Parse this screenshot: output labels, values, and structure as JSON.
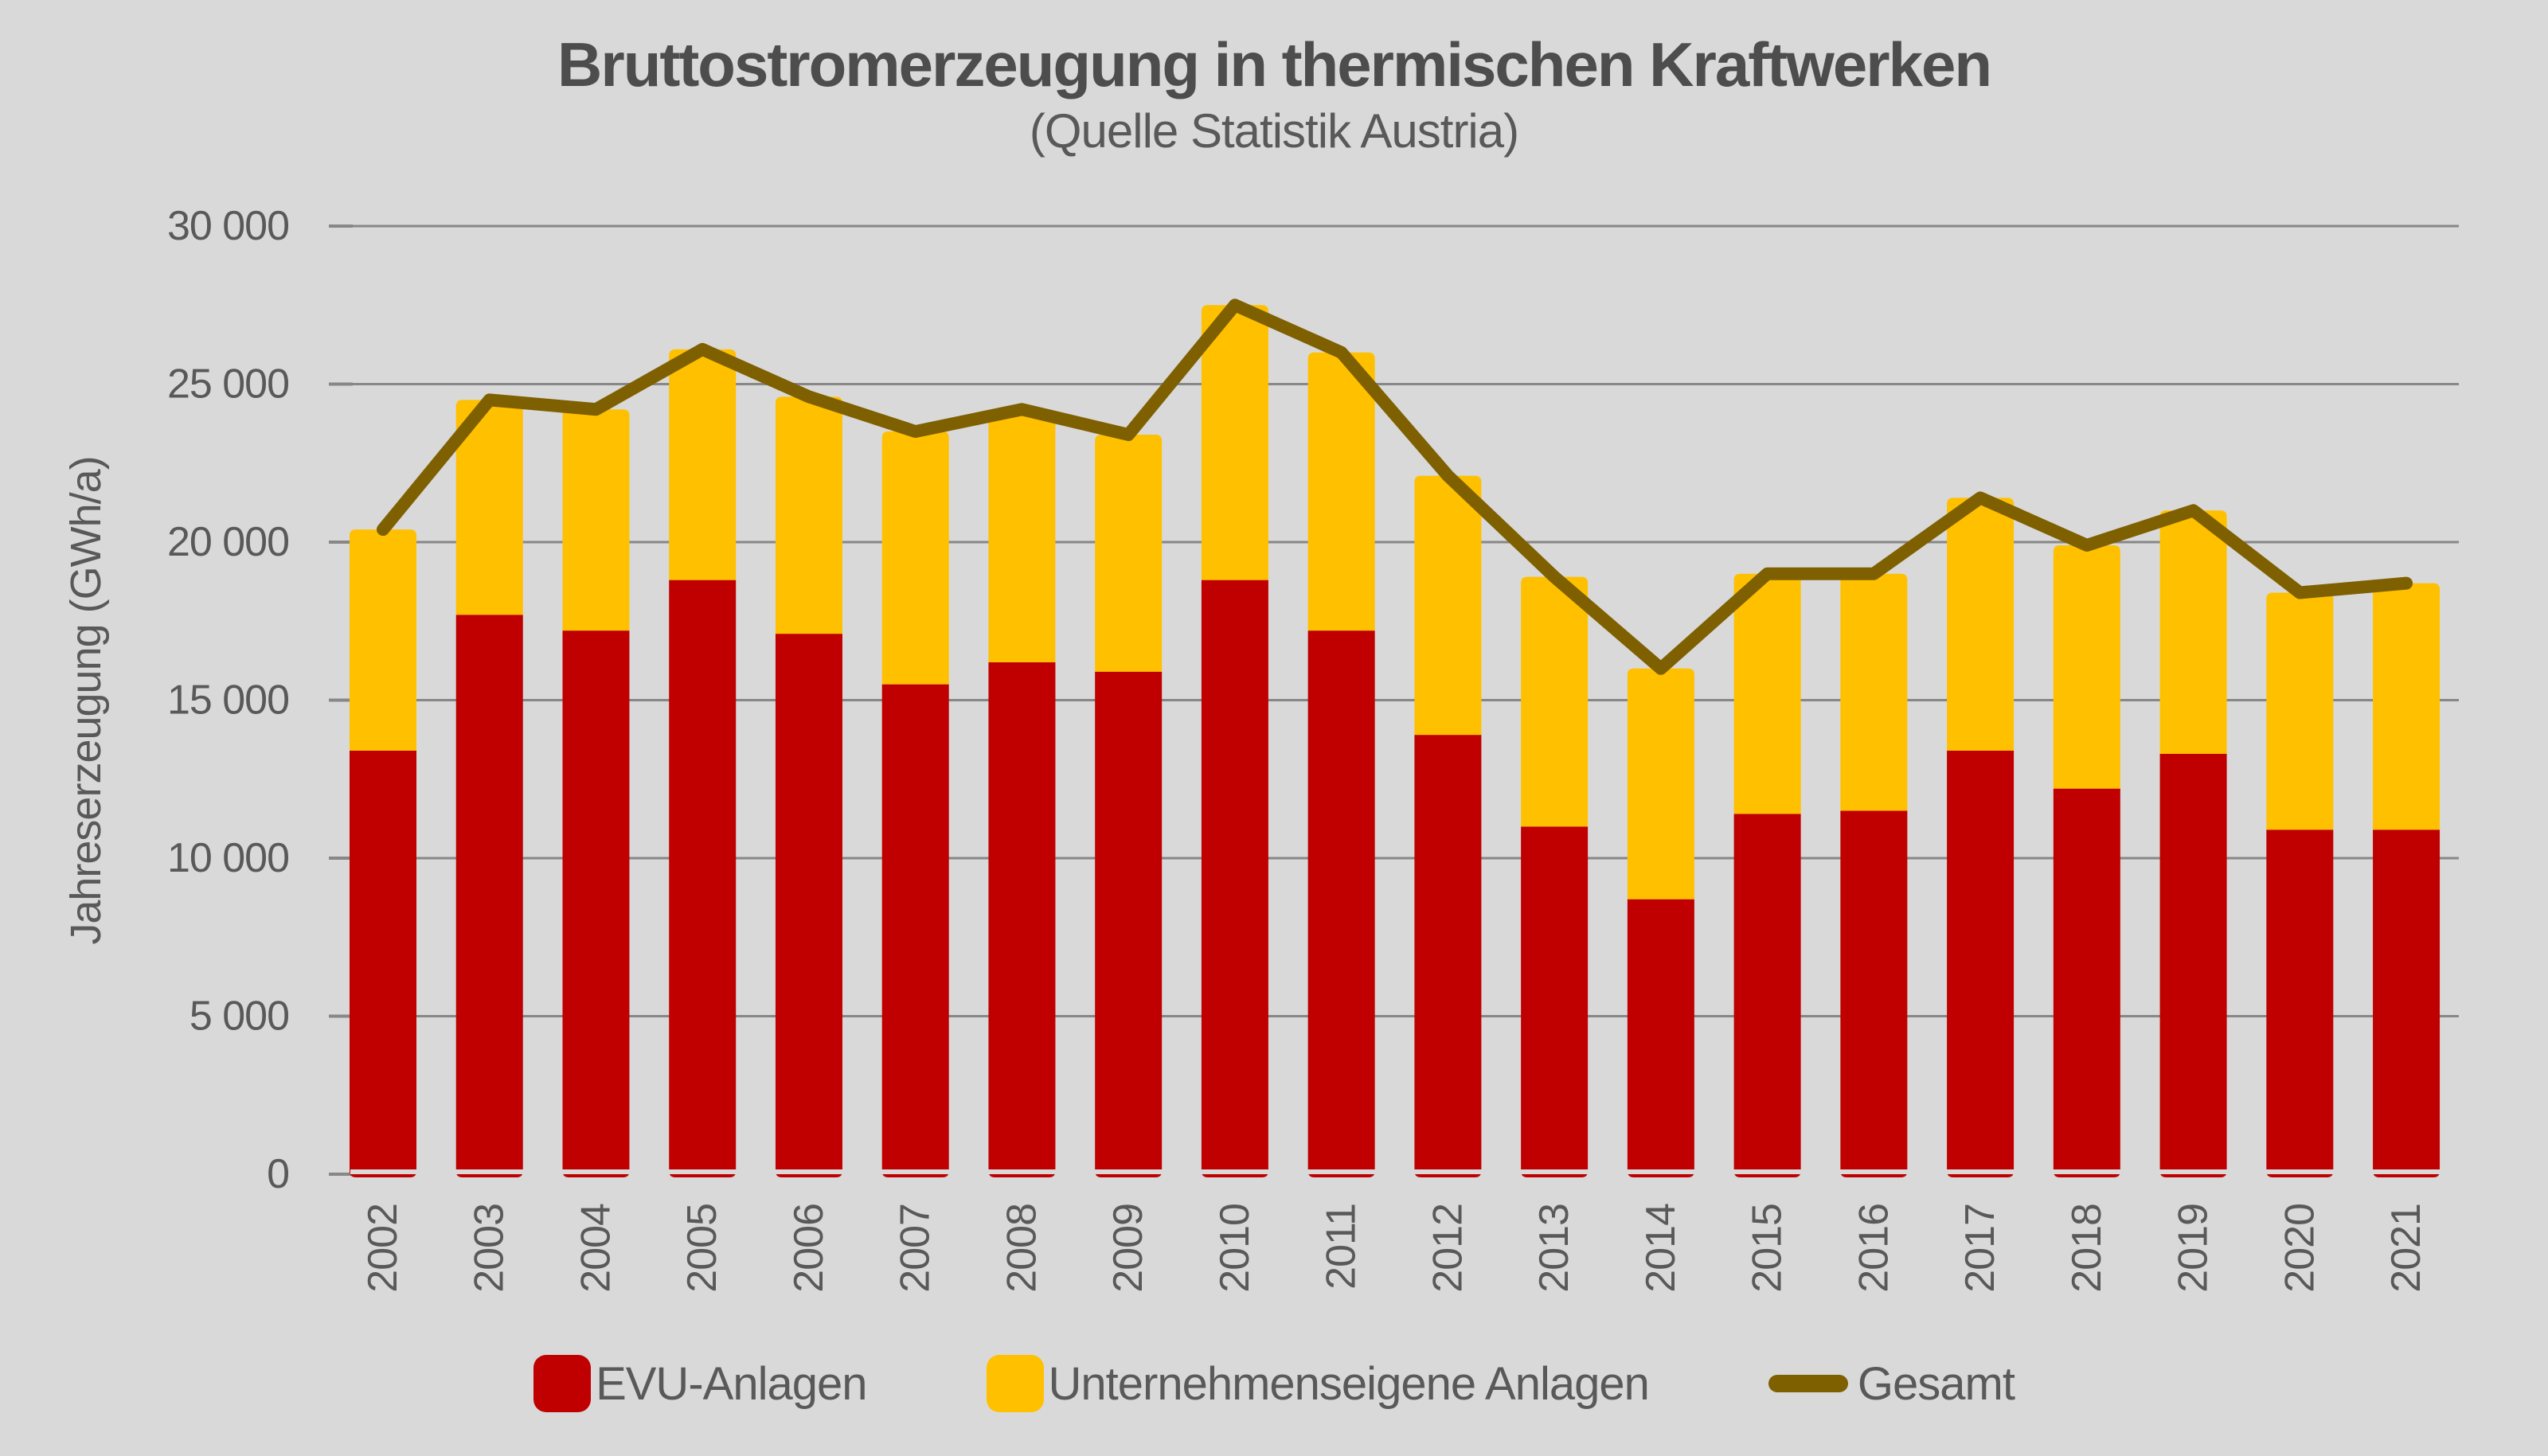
{
  "title": "Bruttostromerzeugung in thermischen Kraftwerken",
  "subtitle": "(Quelle Statistik Austria)",
  "colors": {
    "evu": "#c00000",
    "eigene": "#ffc000",
    "gesamt": "#7f6000",
    "background": "#d9d9d9",
    "grid": "#878787",
    "text": "#595959"
  },
  "legend": {
    "evu_label": "EVU-Anlagen",
    "eigene_label": "Unternehmenseigene Anlagen",
    "gesamt_label": "Gesamt"
  },
  "chart_data": {
    "type": "bar",
    "subtype": "stacked-bars-with-total-line",
    "title": "Bruttostromerzeugung in thermischen Kraftwerken",
    "subtitle": "(Quelle Statistik Austria)",
    "xlabel": "",
    "ylabel": "Jahreserzeugung (GWh/a)",
    "ylim": [
      0,
      30000
    ],
    "yticks": [
      0,
      5000,
      10000,
      15000,
      20000,
      25000,
      30000
    ],
    "ytick_labels": [
      "0",
      "5 000",
      "10 000",
      "15 000",
      "20 000",
      "25 000",
      "30 000"
    ],
    "grid": "horizontal, no line at 0",
    "legend_position": "bottom-center",
    "categories": [
      "2002",
      "2003",
      "2004",
      "2005",
      "2006",
      "2007",
      "2008",
      "2009",
      "2010",
      "2011",
      "2012",
      "2013",
      "2014",
      "2015",
      "2016",
      "2017",
      "2018",
      "2019",
      "2020",
      "2021"
    ],
    "series": [
      {
        "name": "EVU-Anlagen",
        "type": "bar",
        "stack": true,
        "color": "#c00000",
        "values": [
          13400,
          17700,
          17200,
          18800,
          17100,
          15500,
          16200,
          15900,
          18800,
          17200,
          13900,
          11000,
          8700,
          11400,
          11500,
          13400,
          12200,
          13300,
          10900,
          10900
        ]
      },
      {
        "name": "Unternehmenseigene Anlagen",
        "type": "bar",
        "stack": true,
        "color": "#ffc000",
        "values": [
          7000,
          6800,
          7000,
          7300,
          7500,
          8000,
          8000,
          7500,
          8700,
          8800,
          8200,
          7900,
          7300,
          7600,
          7500,
          8000,
          7700,
          7700,
          7500,
          7800
        ]
      },
      {
        "name": "Gesamt",
        "type": "line",
        "color": "#7f6000",
        "values": [
          20400,
          24500,
          24200,
          26100,
          24600,
          23500,
          24200,
          23400,
          27500,
          26000,
          22100,
          18900,
          16000,
          19000,
          19000,
          21400,
          19900,
          21000,
          18400,
          18700
        ]
      }
    ]
  }
}
